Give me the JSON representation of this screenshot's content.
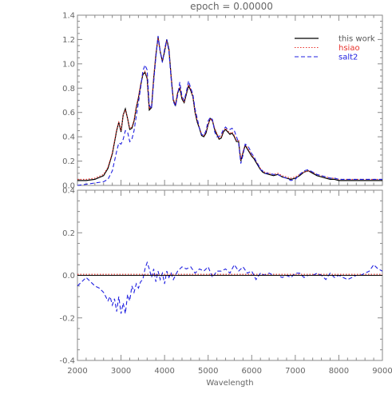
{
  "title": "epoch =   0.00000",
  "colors": {
    "axis": "#8a8a8a",
    "this_work": "#000000",
    "hsiao": "#e8302a",
    "salt2": "#2020e0",
    "zero_line": "#000000"
  },
  "chart_data": [
    {
      "type": "line",
      "title": "epoch =   0.00000",
      "xlabel": "",
      "ylabel": "",
      "xlim": [
        2000,
        9000
      ],
      "ylim": [
        0.0,
        1.4
      ],
      "yticks": [
        "0.0",
        "0.2",
        "0.4",
        "0.6",
        "0.8",
        "1.0",
        "1.2",
        "1.4"
      ],
      "legend": {
        "placement": "top-right",
        "entries": [
          "this work",
          "hsiao",
          "salt2"
        ]
      },
      "series": [
        {
          "name": "this work",
          "style": "solid",
          "x": [
            2000,
            2200,
            2400,
            2600,
            2700,
            2800,
            2900,
            2950,
            3000,
            3050,
            3100,
            3150,
            3200,
            3250,
            3300,
            3350,
            3400,
            3450,
            3500,
            3550,
            3600,
            3650,
            3700,
            3750,
            3800,
            3850,
            3900,
            3950,
            4000,
            4050,
            4100,
            4150,
            4200,
            4250,
            4300,
            4350,
            4400,
            4450,
            4500,
            4550,
            4600,
            4650,
            4700,
            4750,
            4800,
            4850,
            4900,
            4950,
            5000,
            5050,
            5100,
            5150,
            5200,
            5250,
            5300,
            5350,
            5400,
            5450,
            5500,
            5550,
            5600,
            5650,
            5700,
            5750,
            5800,
            5850,
            5900,
            5950,
            6000,
            6050,
            6100,
            6150,
            6200,
            6250,
            6300,
            6400,
            6500,
            6600,
            6700,
            6800,
            6900,
            7000,
            7100,
            7200,
            7300,
            7400,
            7500,
            7600,
            7700,
            7800,
            7900,
            8000,
            8100,
            8200,
            8300,
            8400,
            8500,
            8600,
            8700,
            8800,
            8900,
            9000
          ],
          "y": [
            0.04,
            0.04,
            0.05,
            0.08,
            0.14,
            0.26,
            0.45,
            0.52,
            0.44,
            0.58,
            0.63,
            0.55,
            0.46,
            0.47,
            0.53,
            0.64,
            0.72,
            0.82,
            0.91,
            0.93,
            0.88,
            0.62,
            0.64,
            0.88,
            1.07,
            1.22,
            1.1,
            1.02,
            1.1,
            1.2,
            1.12,
            0.9,
            0.7,
            0.66,
            0.76,
            0.8,
            0.71,
            0.68,
            0.75,
            0.82,
            0.78,
            0.73,
            0.6,
            0.52,
            0.47,
            0.41,
            0.4,
            0.43,
            0.5,
            0.55,
            0.53,
            0.46,
            0.42,
            0.38,
            0.39,
            0.44,
            0.46,
            0.44,
            0.42,
            0.43,
            0.4,
            0.36,
            0.36,
            0.2,
            0.27,
            0.33,
            0.3,
            0.27,
            0.24,
            0.22,
            0.19,
            0.16,
            0.13,
            0.11,
            0.1,
            0.09,
            0.08,
            0.09,
            0.07,
            0.06,
            0.05,
            0.06,
            0.08,
            0.11,
            0.12,
            0.1,
            0.08,
            0.07,
            0.06,
            0.05,
            0.05,
            0.04,
            0.04,
            0.04,
            0.04,
            0.04,
            0.04,
            0.04,
            0.04,
            0.04,
            0.04,
            0.04
          ]
        },
        {
          "name": "hsiao",
          "style": "dotted",
          "x": [
            2000,
            2200,
            2400,
            2600,
            2700,
            2800,
            2900,
            2950,
            3000,
            3050,
            3100,
            3150,
            3200,
            3250,
            3300,
            3350,
            3400,
            3450,
            3500,
            3550,
            3600,
            3650,
            3700,
            3750,
            3800,
            3850,
            3900,
            3950,
            4000,
            4050,
            4100,
            4150,
            4200,
            4250,
            4300,
            4350,
            4400,
            4450,
            4500,
            4550,
            4600,
            4650,
            4700,
            4750,
            4800,
            4850,
            4900,
            4950,
            5000,
            5050,
            5100,
            5150,
            5200,
            5250,
            5300,
            5350,
            5400,
            5450,
            5500,
            5550,
            5600,
            5650,
            5700,
            5750,
            5800,
            5850,
            5900,
            5950,
            6000,
            6050,
            6100,
            6150,
            6200,
            6250,
            6300,
            6400,
            6500,
            6600,
            6700,
            6800,
            6900,
            7000,
            7100,
            7200,
            7300,
            7400,
            7500,
            7600,
            7700,
            7800,
            7900,
            8000,
            8100,
            8200,
            8300,
            8400,
            8500,
            8600,
            8700,
            8800,
            8900,
            9000
          ],
          "y": [
            0.05,
            0.05,
            0.06,
            0.09,
            0.15,
            0.27,
            0.46,
            0.52,
            0.45,
            0.58,
            0.62,
            0.55,
            0.47,
            0.48,
            0.54,
            0.65,
            0.73,
            0.83,
            0.92,
            0.94,
            0.89,
            0.63,
            0.65,
            0.89,
            1.08,
            1.21,
            1.1,
            1.03,
            1.11,
            1.19,
            1.11,
            0.9,
            0.71,
            0.67,
            0.77,
            0.81,
            0.72,
            0.69,
            0.76,
            0.83,
            0.79,
            0.73,
            0.61,
            0.53,
            0.48,
            0.42,
            0.41,
            0.44,
            0.5,
            0.55,
            0.53,
            0.47,
            0.43,
            0.39,
            0.4,
            0.45,
            0.47,
            0.45,
            0.43,
            0.44,
            0.41,
            0.37,
            0.37,
            0.21,
            0.28,
            0.34,
            0.31,
            0.28,
            0.25,
            0.23,
            0.2,
            0.17,
            0.14,
            0.12,
            0.11,
            0.1,
            0.09,
            0.1,
            0.08,
            0.07,
            0.06,
            0.07,
            0.09,
            0.11,
            0.12,
            0.11,
            0.09,
            0.08,
            0.07,
            0.06,
            0.06,
            0.05,
            0.05,
            0.05,
            0.05,
            0.05,
            0.05,
            0.05,
            0.05,
            0.05,
            0.05,
            0.05
          ]
        },
        {
          "name": "salt2",
          "style": "dashed",
          "x": [
            2000,
            2200,
            2400,
            2600,
            2700,
            2800,
            2900,
            2950,
            3000,
            3050,
            3100,
            3150,
            3200,
            3250,
            3300,
            3350,
            3400,
            3450,
            3500,
            3550,
            3600,
            3650,
            3700,
            3750,
            3800,
            3850,
            3900,
            3950,
            4000,
            4050,
            4100,
            4150,
            4200,
            4250,
            4300,
            4350,
            4400,
            4450,
            4500,
            4550,
            4600,
            4650,
            4700,
            4750,
            4800,
            4850,
            4900,
            4950,
            5000,
            5050,
            5100,
            5150,
            5200,
            5250,
            5300,
            5350,
            5400,
            5450,
            5500,
            5550,
            5600,
            5650,
            5700,
            5750,
            5800,
            5850,
            5900,
            5950,
            6000,
            6050,
            6100,
            6150,
            6200,
            6250,
            6300,
            6400,
            6500,
            6600,
            6700,
            6800,
            6900,
            7000,
            7100,
            7200,
            7300,
            7400,
            7500,
            7600,
            7700,
            7800,
            7900,
            8000,
            8100,
            8200,
            8300,
            8400,
            8500,
            8600,
            8700,
            8800,
            8900,
            9000
          ],
          "y": [
            0.0,
            0.01,
            0.02,
            0.03,
            0.05,
            0.12,
            0.28,
            0.35,
            0.34,
            0.38,
            0.45,
            0.44,
            0.36,
            0.38,
            0.45,
            0.57,
            0.68,
            0.8,
            0.94,
            0.99,
            0.95,
            0.66,
            0.63,
            0.85,
            1.05,
            1.23,
            1.1,
            1.01,
            1.12,
            1.2,
            1.1,
            0.88,
            0.69,
            0.65,
            0.74,
            0.85,
            0.73,
            0.7,
            0.77,
            0.86,
            0.8,
            0.75,
            0.63,
            0.55,
            0.47,
            0.42,
            0.41,
            0.45,
            0.53,
            0.56,
            0.54,
            0.44,
            0.4,
            0.4,
            0.42,
            0.46,
            0.48,
            0.46,
            0.46,
            0.47,
            0.45,
            0.4,
            0.35,
            0.18,
            0.25,
            0.34,
            0.33,
            0.3,
            0.26,
            0.24,
            0.2,
            0.17,
            0.13,
            0.12,
            0.1,
            0.1,
            0.09,
            0.09,
            0.07,
            0.06,
            0.04,
            0.05,
            0.09,
            0.12,
            0.13,
            0.11,
            0.09,
            0.08,
            0.07,
            0.06,
            0.06,
            0.05,
            0.05,
            0.05,
            0.05,
            0.05,
            0.05,
            0.05,
            0.05,
            0.05,
            0.05,
            0.05
          ]
        }
      ]
    },
    {
      "type": "line",
      "title": "",
      "xlabel": "Wavelength",
      "ylabel": "",
      "xlim": [
        2000,
        9000
      ],
      "ylim": [
        -0.4,
        0.4
      ],
      "yticks": [
        "-0.4",
        "-0.2",
        "0.0",
        "0.2",
        "0.4"
      ],
      "xticks": [
        "2000",
        "3000",
        "4000",
        "5000",
        "6000",
        "7000",
        "8000",
        "9000"
      ],
      "series": [
        {
          "name": "hsiao",
          "style": "dotted",
          "x": [
            2000,
            9000
          ],
          "y": [
            0.005,
            0.005
          ]
        },
        {
          "name": "salt2",
          "style": "dashed",
          "x": [
            2000,
            2100,
            2200,
            2300,
            2400,
            2500,
            2600,
            2700,
            2750,
            2800,
            2850,
            2900,
            2950,
            3000,
            3050,
            3100,
            3150,
            3200,
            3250,
            3300,
            3350,
            3400,
            3450,
            3500,
            3550,
            3600,
            3650,
            3700,
            3750,
            3800,
            3850,
            3900,
            3950,
            4000,
            4050,
            4100,
            4150,
            4200,
            4300,
            4400,
            4500,
            4600,
            4700,
            4800,
            4900,
            5000,
            5100,
            5200,
            5300,
            5400,
            5500,
            5600,
            5700,
            5800,
            5900,
            6000,
            6100,
            6200,
            6300,
            6400,
            6500,
            6600,
            6700,
            6800,
            6900,
            7000,
            7100,
            7200,
            7300,
            7400,
            7500,
            7600,
            7700,
            7800,
            7900,
            8000,
            8100,
            8200,
            8300,
            8400,
            8500,
            8600,
            8700,
            8800,
            8900,
            9000
          ],
          "y": [
            -0.05,
            -0.03,
            -0.01,
            -0.03,
            -0.05,
            -0.06,
            -0.08,
            -0.12,
            -0.1,
            -0.14,
            -0.11,
            -0.17,
            -0.1,
            -0.18,
            -0.13,
            -0.18,
            -0.09,
            -0.12,
            -0.05,
            -0.08,
            -0.04,
            -0.06,
            -0.03,
            -0.02,
            0.03,
            0.06,
            0.03,
            -0.01,
            0.03,
            -0.03,
            0.02,
            -0.02,
            0.01,
            -0.04,
            0.02,
            -0.01,
            0.01,
            -0.02,
            0.02,
            0.04,
            0.03,
            0.04,
            0.01,
            0.03,
            0.02,
            0.04,
            -0.01,
            0.02,
            0.02,
            0.03,
            0.01,
            0.05,
            0.02,
            0.04,
            0.01,
            0.02,
            -0.02,
            0.01,
            0.0,
            0.01,
            0.0,
            0.0,
            -0.01,
            0.0,
            -0.01,
            0.01,
            0.01,
            -0.01,
            0.0,
            0.0,
            0.01,
            0.0,
            -0.02,
            0.01,
            -0.01,
            0.0,
            -0.01,
            -0.02,
            -0.01,
            0.0,
            0.0,
            0.01,
            0.02,
            0.05,
            0.03,
            0.02
          ]
        },
        {
          "name": "zero",
          "style": "solid",
          "x": [
            2000,
            9000
          ],
          "y": [
            0.0,
            0.0
          ]
        }
      ]
    }
  ]
}
